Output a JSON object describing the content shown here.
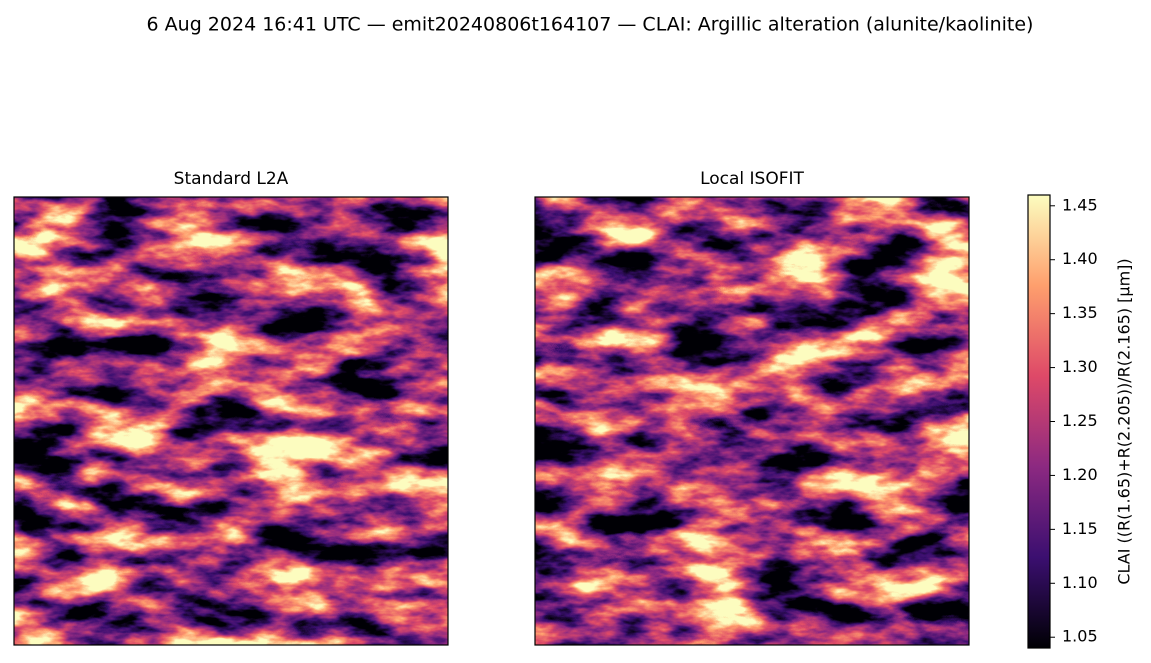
{
  "chart_data": {
    "type": "image",
    "title": "6 Aug 2024 16:41 UTC — emit20240806t164107 — CLAI: Argillic alteration (alunite/kaolinite)",
    "panels": [
      {
        "title": "Standard L2A"
      },
      {
        "title": "Local ISOFIT"
      }
    ],
    "colorbar": {
      "label": "CLAI  ((R(1.65)+R(2.205))/R(2.165)  [µm])",
      "colormap": "magma",
      "lim": [
        1.04,
        1.46
      ],
      "ticks": [
        1.05,
        {
          "value": 1.1,
          "label": "1.10"
        },
        1.15,
        {
          "value": 1.2,
          "label": "1.20"
        },
        1.25,
        {
          "value": 1.3,
          "label": "1.30"
        },
        1.35,
        {
          "value": 1.4,
          "label": "1.40"
        },
        1.45
      ]
    }
  }
}
